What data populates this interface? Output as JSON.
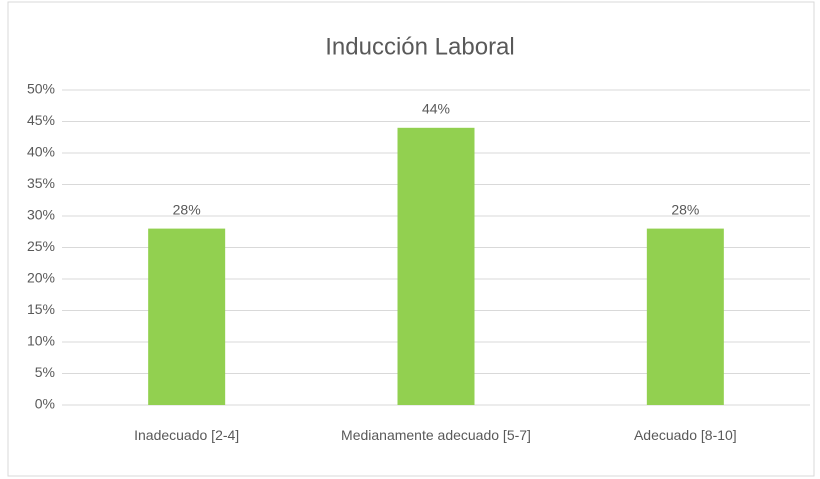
{
  "chart_data": {
    "type": "bar",
    "title": "Inducción Laboral",
    "categories": [
      "Inadecuado  [2-4]",
      "Medianamente adecuado  [5-7]",
      "Adecuado  [8-10]"
    ],
    "values": [
      28,
      44,
      28
    ],
    "value_labels": [
      "28%",
      "44%",
      "28%"
    ],
    "color": "#92d050",
    "ylim": [
      0,
      50
    ],
    "yticks": [
      {
        "value": 0,
        "label": "0%"
      },
      {
        "value": 5,
        "label": "5%"
      },
      {
        "value": 10,
        "label": "10%"
      },
      {
        "value": 15,
        "label": "15%"
      },
      {
        "value": 20,
        "label": "20%"
      },
      {
        "value": 25,
        "label": "25%"
      },
      {
        "value": 30,
        "label": "30%"
      },
      {
        "value": 35,
        "label": "35%"
      },
      {
        "value": 40,
        "label": "40%"
      },
      {
        "value": 45,
        "label": "45%"
      },
      {
        "value": 50,
        "label": "50%"
      }
    ],
    "grid": true
  }
}
